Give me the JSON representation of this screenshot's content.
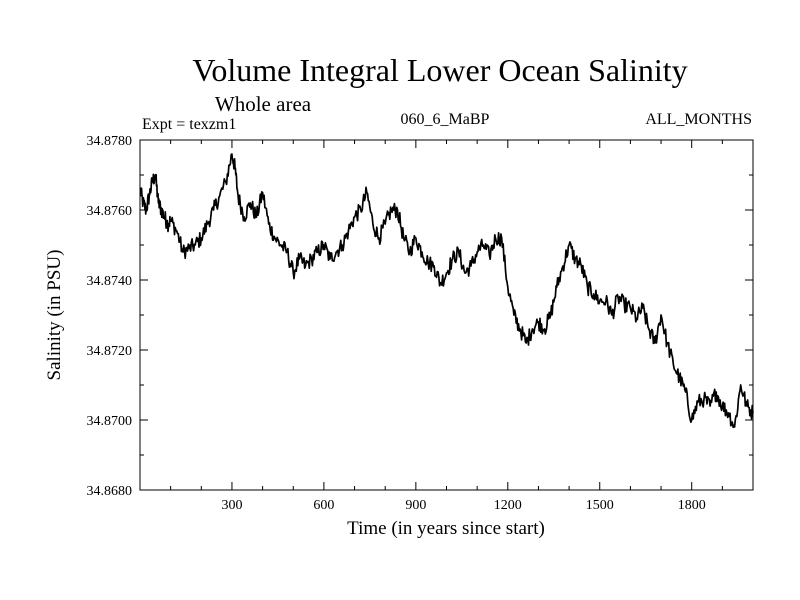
{
  "chart_data": {
    "type": "line",
    "title": "Volume Integral Lower Ocean Salinity",
    "region": "Whole area",
    "experiment": "Expt = texzm1",
    "run_label": "060_6_MaBP",
    "months_label": "ALL_MONTHS",
    "xlabel": "Time (in years since start)",
    "ylabel": "Salinity (in PSU)",
    "xlim": [
      0,
      2000
    ],
    "ylim": [
      34.868,
      34.878
    ],
    "x_ticks": [
      300,
      600,
      900,
      1200,
      1500,
      1800
    ],
    "y_ticks": [
      "34.8680",
      "34.8700",
      "34.8720",
      "34.8740",
      "34.8760",
      "34.8780"
    ],
    "grid": false,
    "series": [
      {
        "name": "Salinity",
        "color": "#000000",
        "x": [
          0,
          10,
          20,
          30,
          40,
          50,
          60,
          70,
          80,
          90,
          100,
          120,
          140,
          160,
          180,
          200,
          220,
          240,
          260,
          280,
          300,
          310,
          320,
          340,
          360,
          380,
          400,
          420,
          440,
          460,
          480,
          500,
          520,
          540,
          560,
          580,
          600,
          620,
          640,
          660,
          680,
          700,
          720,
          740,
          760,
          780,
          800,
          820,
          840,
          860,
          880,
          900,
          920,
          940,
          960,
          980,
          1000,
          1020,
          1040,
          1060,
          1080,
          1100,
          1120,
          1140,
          1160,
          1180,
          1200,
          1220,
          1240,
          1260,
          1280,
          1300,
          1320,
          1340,
          1360,
          1380,
          1400,
          1420,
          1440,
          1460,
          1480,
          1500,
          1520,
          1540,
          1560,
          1580,
          1600,
          1620,
          1640,
          1660,
          1680,
          1700,
          1720,
          1740,
          1760,
          1780,
          1800,
          1820,
          1840,
          1860,
          1880,
          1900,
          1920,
          1940,
          1960,
          1980,
          2000
        ],
        "values": [
          34.8766,
          34.8762,
          34.876,
          34.8764,
          34.8768,
          34.877,
          34.8762,
          34.876,
          34.8758,
          34.8756,
          34.8757,
          34.8754,
          34.8748,
          34.8749,
          34.875,
          34.8752,
          34.8756,
          34.876,
          34.8764,
          34.8768,
          34.8776,
          34.8772,
          34.8764,
          34.8758,
          34.8762,
          34.8758,
          34.8765,
          34.8756,
          34.8752,
          34.875,
          34.8748,
          34.8742,
          34.8746,
          34.8744,
          34.8746,
          34.8748,
          34.875,
          34.8746,
          34.8748,
          34.875,
          34.8754,
          34.8758,
          34.876,
          34.8765,
          34.8756,
          34.8752,
          34.8756,
          34.876,
          34.876,
          34.8752,
          34.8748,
          34.8752,
          34.8748,
          34.8745,
          34.8744,
          34.8739,
          34.8742,
          34.8746,
          34.8748,
          34.8742,
          34.8744,
          34.8748,
          34.875,
          34.8747,
          34.8752,
          34.8752,
          34.8738,
          34.873,
          34.8726,
          34.8722,
          34.8726,
          34.8728,
          34.8726,
          34.873,
          34.8738,
          34.8744,
          34.875,
          34.8746,
          34.8744,
          34.8738,
          34.8736,
          34.8734,
          34.8734,
          34.873,
          34.8735,
          34.8733,
          34.8732,
          34.8729,
          34.8732,
          34.8726,
          34.8722,
          34.873,
          34.8722,
          34.8716,
          34.8712,
          34.8708,
          34.87,
          34.8705,
          34.8706,
          34.8704,
          34.8708,
          34.8704,
          34.8702,
          34.8698,
          34.871,
          34.8704,
          34.8702
        ]
      }
    ]
  }
}
